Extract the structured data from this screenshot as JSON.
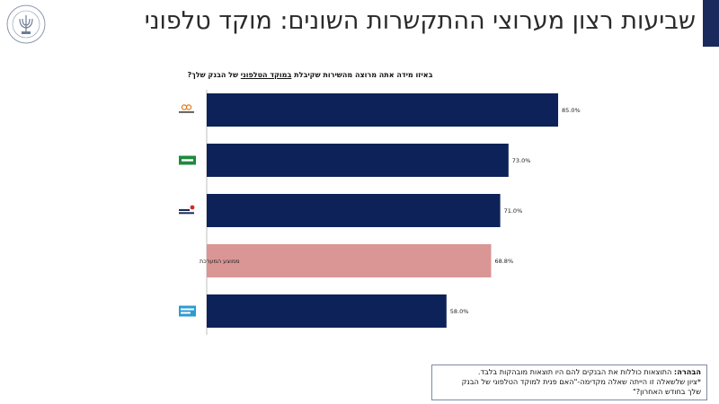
{
  "slide": {
    "title": "שביעות רצון מערוצי ההתקשרות השונים: מוקד טלפוני",
    "logo_text": "BANK OF ISRAEL · בנק ישראל",
    "question_pre": "באיזו מידה אתה מרוצה מהשירות שקיבלת ",
    "question_underlined": "במוקד הטלפוני",
    "question_post": " של הבנק שלך?",
    "note_label": "הבהרה:",
    "note_line1": "התוצאות כוללות את הבנקים להם היו תוצאות מובהקות בלבד.",
    "note_line2": "*ציון שלשאלה זו הייתה שאלה מקדימה-\"האם פנית למוקד הטלפוני של הבנק",
    "note_line3": "שלך בחודש האחרון?\""
  },
  "colors": {
    "bar_default": "#0d2258",
    "bar_average": "#d99694",
    "accent": "#1b2a5c"
  },
  "chart_data": {
    "type": "bar",
    "orientation": "horizontal",
    "categories": [
      "Mizrahi-Tefahot",
      "Leumi",
      "Discount",
      "ממוצע המערכת",
      "Hapoalim"
    ],
    "category_icons": [
      "mizrahi-logo-icon",
      "leumi-logo-icon",
      "discount-logo-icon",
      "",
      "hapoalim-logo-icon"
    ],
    "values": [
      85.0,
      73.0,
      71.0,
      68.8,
      58.0
    ],
    "value_labels": [
      "85.0%",
      "73.0%",
      "71.0%",
      "68.8%",
      "58.0%"
    ],
    "highlight_index": 3,
    "xlim": [
      0,
      100
    ],
    "grid": false,
    "legend": "none"
  }
}
